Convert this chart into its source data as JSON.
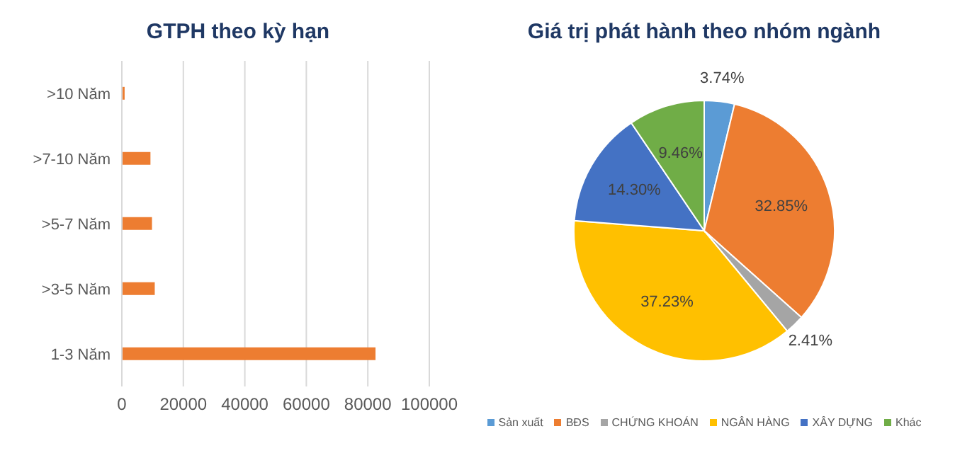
{
  "chart_data": [
    {
      "type": "bar",
      "title": "GTPH theo kỳ hạn",
      "orientation": "horizontal",
      "categories": [
        ">10 Năm",
        ">7-10 Năm",
        ">5-7 Năm",
        ">3-5 Năm",
        "1-3 Năm"
      ],
      "values": [
        900,
        9300,
        9800,
        10700,
        82500
      ],
      "color": "#ed7d31",
      "xlim": [
        0,
        100000
      ],
      "xticks": [
        0,
        20000,
        40000,
        60000,
        80000,
        100000
      ],
      "grid": "x"
    },
    {
      "type": "pie",
      "title": "Giá trị phát hành theo nhóm ngành",
      "categories": [
        "Sản xuất",
        "BĐS",
        "CHỨNG KHOÁN",
        "NGÂN HÀNG",
        "XÂY DỰNG",
        "Khác"
      ],
      "values": [
        3.74,
        32.85,
        2.41,
        37.23,
        14.3,
        9.46
      ],
      "colors": [
        "#5b9bd5",
        "#ed7d31",
        "#a5a5a5",
        "#ffc000",
        "#4472c4",
        "#70ad47"
      ],
      "value_labels": [
        "3.74%",
        "32.85%",
        "2.41%",
        "37.23%",
        "14.30%",
        "9.46%"
      ],
      "legend": "bottom"
    }
  ]
}
